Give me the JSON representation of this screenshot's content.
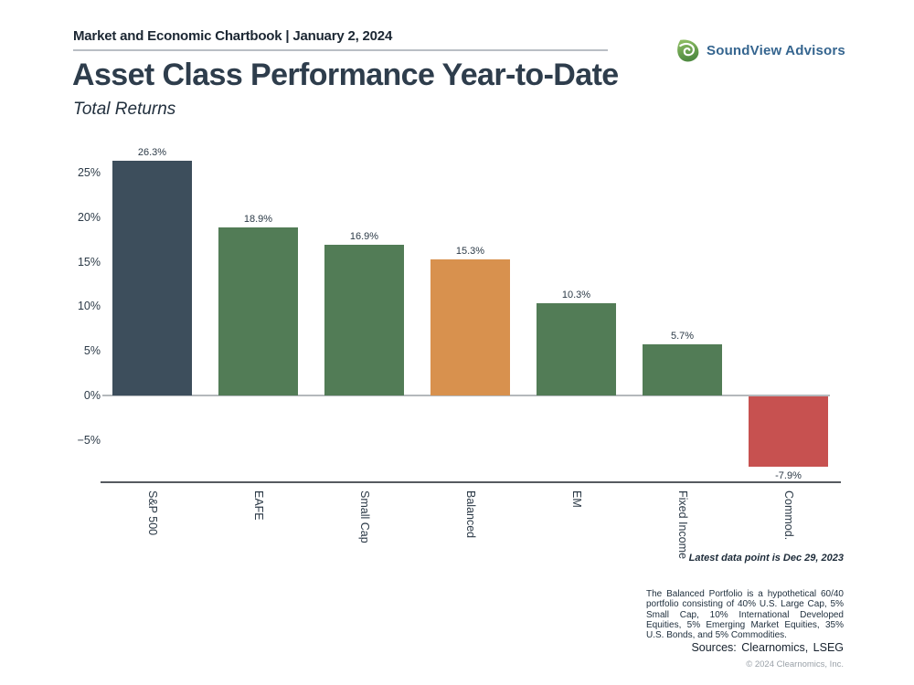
{
  "header": {
    "chartbook_title": "Market and Economic Chartbook | January 2, 2024",
    "brand": "SoundView Advisors"
  },
  "title": "Asset Class Performance Year-to-Date",
  "subtitle": "Total Returns",
  "chart_data": {
    "type": "bar",
    "categories": [
      "S&P 500",
      "EAFE",
      "Small Cap",
      "Balanced",
      "EM",
      "Fixed Income",
      "Commod."
    ],
    "values": [
      26.3,
      18.9,
      16.9,
      15.3,
      10.3,
      5.7,
      -7.9
    ],
    "value_labels": [
      "26.3%",
      "18.9%",
      "16.9%",
      "15.3%",
      "10.3%",
      "5.7%",
      "-7.9%"
    ],
    "bar_colors": [
      "#3d4e5c",
      "#527c56",
      "#527c56",
      "#d8914e",
      "#527c56",
      "#527c56",
      "#c75150"
    ],
    "colors": {
      "sp500_dark_slate": "#3d4e5c",
      "equity_green": "#527c56",
      "balanced_orange": "#d8914e",
      "negative_red": "#c75150",
      "zero_line_gray": "#b4b8bc",
      "axis_line_gray": "#555a60"
    },
    "y_ticks": [
      {
        "label": "25%",
        "value": 25
      },
      {
        "label": "20%",
        "value": 20
      },
      {
        "label": "15%",
        "value": 15
      },
      {
        "label": "10%",
        "value": 10
      },
      {
        "label": "5%",
        "value": 5
      },
      {
        "label": "0%",
        "value": 0
      },
      {
        "label": "−5%",
        "value": -5
      }
    ],
    "ylim": [
      -9.7,
      27.5
    ],
    "grid": false,
    "legend": false,
    "title": "Asset Class Performance Year-to-Date",
    "subtitle": "Total Returns",
    "xlabel": "",
    "ylabel": ""
  },
  "annotations": {
    "latest_data": "Latest data point is Dec 29, 2023",
    "footnote": "The Balanced Portfolio is a hypothetical 60/40 portfolio consisting of 40% U.S. Large Cap, 5% Small Cap, 10% International Developed Equities, 5% Emerging Market Equities, 35% U.S. Bonds, and 5% Commodities.",
    "sources": "Sources: Clearnomics, LSEG",
    "copyright": "© 2024 Clearnomics, Inc."
  }
}
